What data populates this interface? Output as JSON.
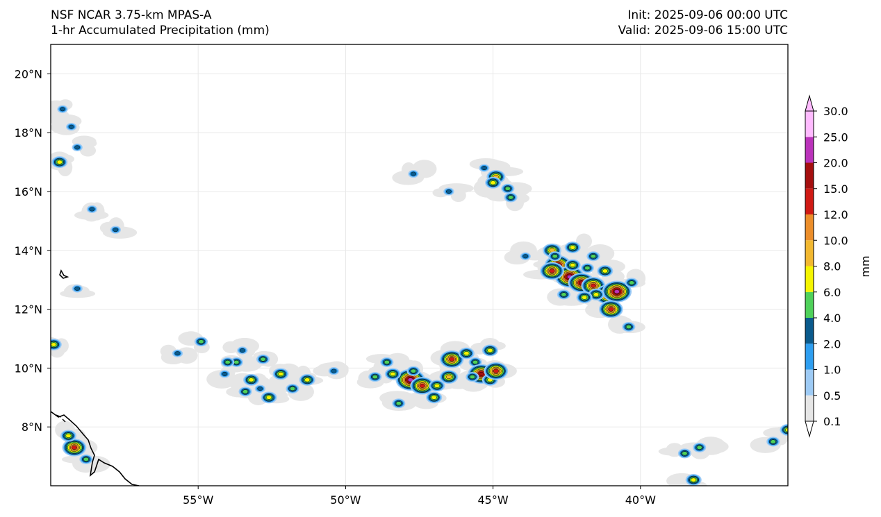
{
  "header": {
    "model": "NSF NCAR 3.75-km MPAS-A",
    "field": "1-hr Accumulated Precipitation (mm)",
    "init": "Init: 2025-09-06 00:00 UTC",
    "valid": "Valid: 2025-09-06 15:00 UTC"
  },
  "map": {
    "projection": "plate-carree",
    "lon_range": [
      -60,
      -35
    ],
    "lat_range": [
      6,
      21
    ],
    "lon_ticks": [
      {
        "value": -55,
        "label": "55°W"
      },
      {
        "value": -50,
        "label": "50°W"
      },
      {
        "value": -45,
        "label": "45°W"
      },
      {
        "value": -40,
        "label": "40°W"
      }
    ],
    "lat_ticks": [
      {
        "value": 20,
        "label": "20°N"
      },
      {
        "value": 18,
        "label": "18°N"
      },
      {
        "value": 16,
        "label": "16°N"
      },
      {
        "value": 14,
        "label": "14°N"
      },
      {
        "value": 12,
        "label": "12°N"
      },
      {
        "value": 10,
        "label": "10°N"
      },
      {
        "value": 8,
        "label": "8°N"
      }
    ],
    "gridlines": true,
    "coastline_color": "#000000"
  },
  "colorbar": {
    "unit": "mm",
    "levels": [
      "0.1",
      "0.5",
      "1.0",
      "2.0",
      "4.0",
      "6.0",
      "8.0",
      "10.0",
      "12.0",
      "15.0",
      "20.0",
      "25.0",
      "30.0"
    ],
    "colors": [
      "#e6e6e6",
      "#9ecbf5",
      "#2e9ef0",
      "#0a5a8c",
      "#4fd15a",
      "#f5f500",
      "#f2b830",
      "#ec8e2a",
      "#d01a14",
      "#a50f0f",
      "#bb33bb",
      "#ffbbff"
    ],
    "extend": "both"
  },
  "precip_cells": [
    {
      "lon": -47.8,
      "lat": 9.6,
      "mm": 20
    },
    {
      "lon": -47.4,
      "lat": 9.4,
      "mm": 12
    },
    {
      "lon": -47.0,
      "lat": 9.0,
      "mm": 6
    },
    {
      "lon": -47.7,
      "lat": 9.9,
      "mm": 4
    },
    {
      "lon": -48.4,
      "lat": 9.8,
      "mm": 6
    },
    {
      "lon": -48.6,
      "lat": 10.2,
      "mm": 4
    },
    {
      "lon": -46.5,
      "lat": 9.7,
      "mm": 8
    },
    {
      "lon": -46.4,
      "lat": 10.3,
      "mm": 12
    },
    {
      "lon": -45.9,
      "lat": 10.5,
      "mm": 6
    },
    {
      "lon": -45.6,
      "lat": 10.2,
      "mm": 4
    },
    {
      "lon": -45.1,
      "lat": 10.6,
      "mm": 6
    },
    {
      "lon": -45.4,
      "lat": 9.8,
      "mm": 15
    },
    {
      "lon": -45.1,
      "lat": 9.6,
      "mm": 6
    },
    {
      "lon": -44.9,
      "lat": 9.9,
      "mm": 12
    },
    {
      "lon": -45.7,
      "lat": 9.7,
      "mm": 4
    },
    {
      "lon": -48.2,
      "lat": 8.8,
      "mm": 4
    },
    {
      "lon": -46.9,
      "lat": 9.4,
      "mm": 6
    },
    {
      "lon": -49.0,
      "lat": 9.7,
      "mm": 4
    },
    {
      "lon": -52.2,
      "lat": 9.8,
      "mm": 6
    },
    {
      "lon": -51.3,
      "lat": 9.6,
      "mm": 6
    },
    {
      "lon": -52.8,
      "lat": 10.3,
      "mm": 4
    },
    {
      "lon": -53.2,
      "lat": 9.6,
      "mm": 6
    },
    {
      "lon": -53.7,
      "lat": 10.2,
      "mm": 4
    },
    {
      "lon": -54.0,
      "lat": 10.2,
      "mm": 4
    },
    {
      "lon": -54.1,
      "lat": 9.8,
      "mm": 2
    },
    {
      "lon": -52.6,
      "lat": 9.0,
      "mm": 6
    },
    {
      "lon": -53.4,
      "lat": 9.2,
      "mm": 4
    },
    {
      "lon": -52.9,
      "lat": 9.3,
      "mm": 2
    },
    {
      "lon": -51.8,
      "lat": 9.3,
      "mm": 4
    },
    {
      "lon": -53.5,
      "lat": 10.6,
      "mm": 2
    },
    {
      "lon": -54.9,
      "lat": 10.9,
      "mm": 4
    },
    {
      "lon": -55.7,
      "lat": 10.5,
      "mm": 2
    },
    {
      "lon": -50.4,
      "lat": 9.9,
      "mm": 2
    },
    {
      "lon": -42.8,
      "lat": 13.5,
      "mm": 15
    },
    {
      "lon": -42.4,
      "lat": 13.1,
      "mm": 20
    },
    {
      "lon": -42.0,
      "lat": 12.9,
      "mm": 15
    },
    {
      "lon": -41.6,
      "lat": 12.8,
      "mm": 12
    },
    {
      "lon": -41.1,
      "lat": 12.5,
      "mm": 15
    },
    {
      "lon": -40.8,
      "lat": 12.6,
      "mm": 20
    },
    {
      "lon": -41.0,
      "lat": 12.0,
      "mm": 12
    },
    {
      "lon": -41.5,
      "lat": 12.5,
      "mm": 6
    },
    {
      "lon": -41.9,
      "lat": 12.4,
      "mm": 6
    },
    {
      "lon": -42.6,
      "lat": 12.5,
      "mm": 4
    },
    {
      "lon": -43.0,
      "lat": 13.3,
      "mm": 12
    },
    {
      "lon": -42.3,
      "lat": 13.5,
      "mm": 6
    },
    {
      "lon": -41.8,
      "lat": 13.4,
      "mm": 4
    },
    {
      "lon": -41.2,
      "lat": 13.3,
      "mm": 6
    },
    {
      "lon": -43.0,
      "lat": 14.0,
      "mm": 8
    },
    {
      "lon": -42.3,
      "lat": 14.1,
      "mm": 6
    },
    {
      "lon": -41.6,
      "lat": 13.8,
      "mm": 4
    },
    {
      "lon": -40.3,
      "lat": 12.9,
      "mm": 4
    },
    {
      "lon": -40.4,
      "lat": 11.4,
      "mm": 4
    },
    {
      "lon": -42.9,
      "lat": 13.8,
      "mm": 4
    },
    {
      "lon": -44.9,
      "lat": 16.5,
      "mm": 8
    },
    {
      "lon": -45.0,
      "lat": 16.3,
      "mm": 6
    },
    {
      "lon": -44.4,
      "lat": 15.8,
      "mm": 4
    },
    {
      "lon": -44.5,
      "lat": 16.1,
      "mm": 4
    },
    {
      "lon": -45.3,
      "lat": 16.8,
      "mm": 2
    },
    {
      "lon": -59.7,
      "lat": 17.0,
      "mm": 6
    },
    {
      "lon": -59.1,
      "lat": 17.5,
      "mm": 2
    },
    {
      "lon": -59.3,
      "lat": 18.2,
      "mm": 2
    },
    {
      "lon": -59.6,
      "lat": 18.8,
      "mm": 2
    },
    {
      "lon": -58.6,
      "lat": 15.4,
      "mm": 2
    },
    {
      "lon": -57.8,
      "lat": 14.7,
      "mm": 2
    },
    {
      "lon": -59.1,
      "lat": 12.7,
      "mm": 2
    },
    {
      "lon": -59.9,
      "lat": 10.8,
      "mm": 6
    },
    {
      "lon": -59.2,
      "lat": 7.3,
      "mm": 12
    },
    {
      "lon": -59.4,
      "lat": 7.7,
      "mm": 6
    },
    {
      "lon": -58.8,
      "lat": 6.9,
      "mm": 4
    },
    {
      "lon": -38.2,
      "lat": 6.2,
      "mm": 6
    },
    {
      "lon": -38.5,
      "lat": 7.1,
      "mm": 4
    },
    {
      "lon": -38.0,
      "lat": 7.3,
      "mm": 4
    },
    {
      "lon": -35.5,
      "lat": 7.5,
      "mm": 4
    },
    {
      "lon": -35.0,
      "lat": 7.9,
      "mm": 6
    },
    {
      "lon": -43.9,
      "lat": 13.8,
      "mm": 2
    },
    {
      "lon": -46.5,
      "lat": 16.0,
      "mm": 2
    },
    {
      "lon": -47.7,
      "lat": 16.6,
      "mm": 2
    }
  ]
}
